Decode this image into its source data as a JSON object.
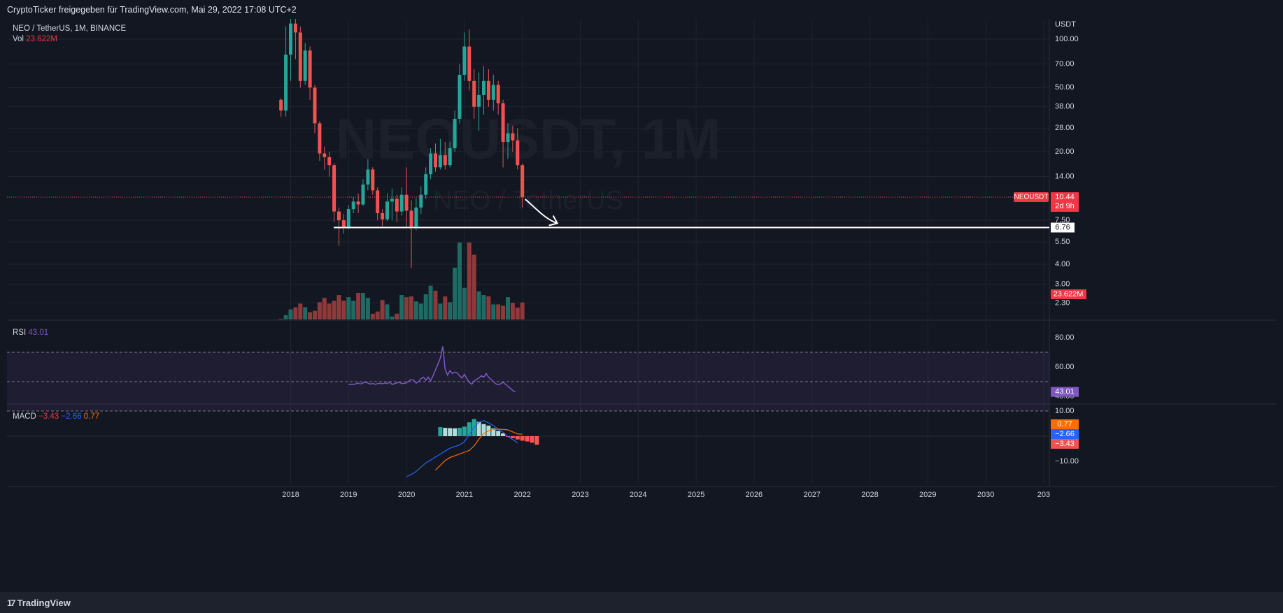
{
  "header": {
    "text": "CryptoTicker freigegeben für TradingView.com, Mai 29, 2022 17:08 UTC+2"
  },
  "footer": {
    "logo_text": "TradingView",
    "logo_mark": "17"
  },
  "legend": {
    "symbol": "NEO / TetherUS, 1M, BINANCE",
    "vol_label": "Vol",
    "vol_value": "23.622M",
    "rsi_label": "RSI",
    "rsi_value": "43.01",
    "macd_label": "MACD",
    "macd_values": [
      "−3.43",
      "−2.66",
      "0.77"
    ]
  },
  "watermark": {
    "ticker": "NEOUSDT, 1M",
    "name": "NEO / TetherUS"
  },
  "colors": {
    "background": "#131722",
    "up": "#26a69a",
    "down": "#ef5350",
    "vol_up": "#1e6b64",
    "vol_down": "#8f3a3a",
    "rsi_line": "#7e57c2",
    "macd_line": "#2962ff",
    "signal_line": "#ff6d00",
    "grid": "#1f2430",
    "text": "#b2b5be"
  },
  "chart_data": [
    {
      "type": "candlestick",
      "title": "NEO / TetherUS, 1M, BINANCE",
      "price_scale": "log",
      "y_unit": "USDT",
      "y_ticks": [
        100.0,
        70.0,
        50.0,
        38.0,
        28.0,
        20.0,
        14.0,
        7.5,
        5.5,
        4.0,
        3.0,
        2.3
      ],
      "y_tick_labels": [
        "100.00",
        "70.00",
        "50.00",
        "38.00",
        "28.00",
        "20.00",
        "14.00",
        "7.50",
        "5.50",
        "4.00",
        "3.00",
        "2.30"
      ],
      "x_tick_labels": [
        "2018",
        "2019",
        "2020",
        "2021",
        "2022",
        "2023",
        "2024",
        "2025",
        "2026",
        "2027",
        "2028",
        "2029",
        "2030",
        "203"
      ],
      "start": "2017-11",
      "ohlc": [
        [
          42,
          36,
          43,
          33
        ],
        [
          36,
          80,
          120,
          33
        ],
        [
          80,
          125,
          200,
          55
        ],
        [
          125,
          110,
          150,
          75
        ],
        [
          110,
          55,
          120,
          50
        ],
        [
          55,
          85,
          95,
          52
        ],
        [
          85,
          50,
          90,
          42
        ],
        [
          50,
          30,
          52,
          26
        ],
        [
          30,
          19.5,
          31,
          17.5
        ],
        [
          19.5,
          18.5,
          21.5,
          15.5
        ],
        [
          18.5,
          16.5,
          20,
          14
        ],
        [
          16.5,
          8.5,
          17,
          7.3
        ],
        [
          8.5,
          7.5,
          9,
          5.2
        ],
        [
          7.5,
          6.8,
          8.2,
          6.2
        ],
        [
          6.8,
          8.8,
          9.3,
          6.6
        ],
        [
          8.8,
          9.8,
          10.5,
          8.3
        ],
        [
          9.8,
          9.4,
          11,
          8.3
        ],
        [
          9.4,
          12.5,
          13.5,
          9.2
        ],
        [
          12.5,
          15.5,
          18,
          11.5
        ],
        [
          15.5,
          11.5,
          16,
          10.8
        ],
        [
          11.5,
          8.3,
          12,
          7.5
        ],
        [
          8.3,
          7.6,
          8.8,
          6.9
        ],
        [
          7.6,
          9.8,
          11,
          7.4
        ],
        [
          9.8,
          10.2,
          11.8,
          7.5
        ],
        [
          10.2,
          8.5,
          10.8,
          7.3
        ],
        [
          8.5,
          10.8,
          12,
          8
        ],
        [
          10.8,
          8.6,
          16,
          6.7
        ],
        [
          8.6,
          6.8,
          10,
          3.8
        ],
        [
          6.8,
          9.0,
          10.3,
          6.5
        ],
        [
          9.0,
          10.8,
          12.2,
          8.2
        ],
        [
          10.8,
          14.5,
          16,
          10.2
        ],
        [
          14.5,
          19.5,
          21,
          13.5
        ],
        [
          19.5,
          16,
          22.5,
          15
        ],
        [
          16,
          19,
          24,
          15.5
        ],
        [
          19,
          16.5,
          23,
          15.5
        ],
        [
          16.5,
          21,
          23,
          16
        ],
        [
          21,
          32,
          36,
          20
        ],
        [
          32,
          60,
          70,
          30
        ],
        [
          60,
          90,
          110,
          55
        ],
        [
          90,
          55,
          115,
          48
        ],
        [
          55,
          38,
          65,
          32
        ],
        [
          38,
          45,
          62,
          27
        ],
        [
          45,
          55,
          68,
          34
        ],
        [
          55,
          42,
          65,
          38
        ],
        [
          42,
          52,
          60,
          36
        ],
        [
          52,
          40,
          55,
          34
        ],
        [
          40,
          23,
          42,
          16
        ],
        [
          23,
          26,
          30,
          18
        ],
        [
          26,
          23.5,
          29,
          20
        ],
        [
          23.5,
          16.5,
          28,
          15.5
        ],
        [
          16.5,
          10.44,
          16.8,
          9
        ]
      ],
      "volume_unit": "M",
      "volume": [
        1,
        6,
        14,
        17,
        22,
        17,
        10,
        12,
        24,
        30,
        22,
        26,
        34,
        26,
        31,
        26,
        37,
        37,
        30,
        8,
        11,
        27,
        21,
        4,
        8,
        34,
        31,
        32,
        25,
        22,
        35,
        47,
        40,
        22,
        32,
        24,
        72,
        107,
        44,
        107,
        90,
        39,
        34,
        32,
        21,
        21,
        19,
        31,
        23,
        16.5,
        23.622
      ],
      "last_price_label": "NEOUSDT",
      "last_price": "10.44",
      "countdown": "2d 9h",
      "support_level": 6.76,
      "support_label": "6.76",
      "volume_label": "23.622M"
    },
    {
      "type": "line",
      "title": "RSI",
      "y_tick_labels": [
        "80.00",
        "60.00",
        "40.00"
      ],
      "ylim": [
        20,
        80
      ],
      "bands": [
        70,
        50,
        30
      ],
      "start": "2019-01",
      "values": [
        48,
        48.2,
        48.1,
        48.5,
        49,
        48.4,
        49.2,
        49.7,
        49,
        48.3,
        48.8,
        48.2,
        48.6,
        48.9,
        48.5,
        49.1,
        48.7,
        49.7,
        48.1,
        48.6,
        49.1,
        49.6,
        48.7,
        48.8,
        49.2,
        50.5,
        51.5,
        50.9,
        49,
        50,
        52,
        53,
        51,
        53,
        50.5,
        54,
        58,
        62,
        66,
        74,
        58.5,
        54.5,
        57.5,
        55.5,
        56.5,
        56,
        54,
        52.5,
        55,
        52,
        49.5,
        48.2,
        50.5,
        51.5,
        52.5,
        54,
        53,
        55.5,
        53,
        51.5,
        50,
        48.5,
        47.8,
        48.5,
        49.6,
        48.2,
        46.8,
        45.5,
        44,
        43.01
      ],
      "last_label": "43.01"
    },
    {
      "type": "bar+line",
      "title": "MACD",
      "y_tick_labels": [
        "10.00",
        "−10.00"
      ],
      "ylim": [
        -16,
        12
      ],
      "macd_start": "2020-01",
      "macd": [
        -16.1,
        -15.2,
        -14,
        -12.3,
        -10.6,
        -9.5,
        -8.3,
        -7.1,
        -5.9,
        -4.8,
        -4.1,
        -3.5,
        -2.2,
        0.6,
        3.5,
        5.5,
        6.2,
        5.3,
        4.2,
        2.8,
        1.6,
        -0.2,
        -1.3,
        -2.66
      ],
      "signal_start": "2020-07",
      "signal": [
        -13.5,
        -11.6,
        -9.7,
        -8.5,
        -7.8,
        -7.1,
        -6.4,
        -5.7,
        -3.9,
        -1.2,
        1.1,
        2.1,
        2.6,
        2.8,
        2.7,
        2.5,
        1.7,
        0.9,
        0.77
      ],
      "histogram_start": "2020-08",
      "histogram": [
        3.6,
        3.3,
        3.2,
        3.1,
        3.3,
        3.8,
        5.5,
        6.8,
        5.7,
        4.8,
        4.2,
        3.1,
        2.1,
        1.1,
        -0.2,
        -0.8,
        -1.3,
        -1.8,
        -2.1,
        -2.6,
        -3.43
      ],
      "legend_values": [
        "−3.43",
        "−2.66",
        "0.77"
      ],
      "badges": [
        {
          "text": "0.77",
          "color": "#ff6d00"
        },
        {
          "text": "−2.66",
          "color": "#2962ff"
        },
        {
          "text": "−3.43",
          "color": "#ef5350"
        }
      ]
    }
  ]
}
